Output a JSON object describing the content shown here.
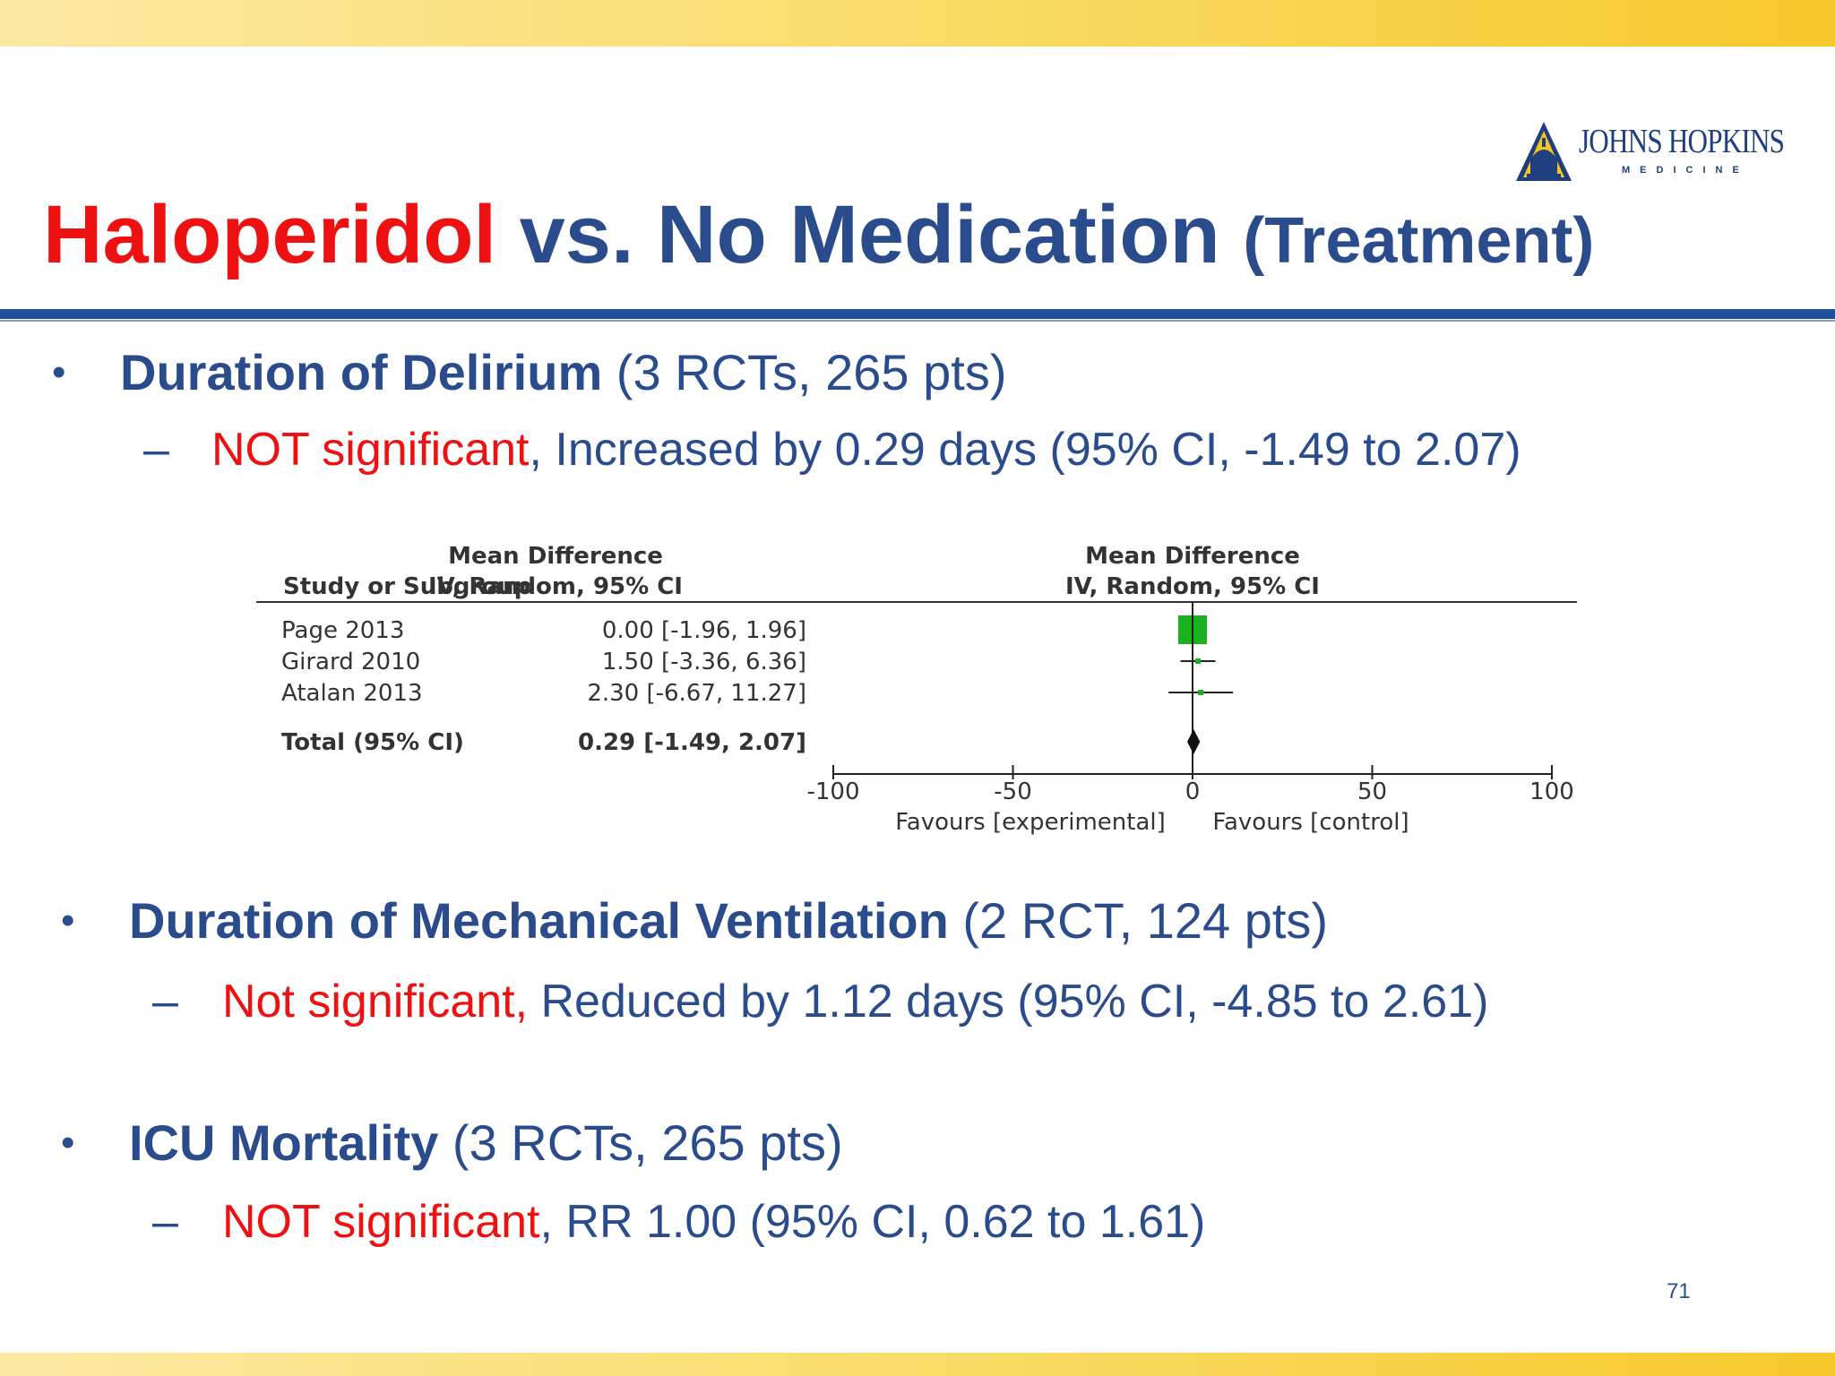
{
  "colors": {
    "title_blue": "#2b4c8c",
    "accent_red": "#ee1111",
    "rule_blue": "#1f4e9a",
    "band_gold": "#f9dd6e",
    "marker_green": "#19b21f"
  },
  "logo": {
    "name": "JOHNS HOPKINS",
    "sub": "MEDICINE",
    "icon": "dome-shield-icon"
  },
  "title": {
    "part1": "Haloperidol",
    "part2": " vs. No Medication ",
    "part3": "(Treatment)"
  },
  "bullets": [
    {
      "heading": "Duration of Delirium",
      "detail": " (3 RCTs, 265 pts)",
      "sub_sig": "NOT significant",
      "sub_rest": ", Increased by 0.29 days (95% CI, -1.49 to 2.07)"
    },
    {
      "heading": "Duration of Mechanical Ventilation",
      "detail": " (2 RCT, 124 pts)",
      "sub_sig": "Not significant,",
      "sub_rest": " Reduced by 1.12 days (95% CI, -4.85 to 2.61)"
    },
    {
      "heading": "ICU Mortality",
      "detail": " (3 RCTs, 265 pts)",
      "sub_sig": "NOT significant",
      "sub_rest": ", RR 1.00 (95% CI, 0.62 to 1.61)"
    }
  ],
  "bullet_char": "•",
  "dash_char": "–",
  "forest": {
    "col_study": "Study or Subgroup",
    "col_md_line1": "Mean Difference",
    "col_md_line2": "IV, Random, 95% CI",
    "plot_header_line1": "Mean Difference",
    "plot_header_line2": "IV, Random, 95% CI",
    "total_label": "Total (95% CI)",
    "total_ci_text": "0.29 [-1.49, 2.07]",
    "favours_left": "Favours [experimental]",
    "favours_right": "Favours [control]"
  },
  "chart_data": {
    "type": "forest",
    "studies": [
      {
        "name": "Page 2013",
        "md": 0.0,
        "lo": -1.96,
        "hi": 1.96,
        "ci_text": "0.00 [-1.96, 1.96]"
      },
      {
        "name": "Girard 2010",
        "md": 1.5,
        "lo": -3.36,
        "hi": 6.36,
        "ci_text": "1.50 [-3.36, 6.36]"
      },
      {
        "name": "Atalan 2013",
        "md": 2.3,
        "lo": -6.67,
        "hi": 11.27,
        "ci_text": "2.30 [-6.67, 11.27]"
      }
    ],
    "total": {
      "md": 0.29,
      "lo": -1.49,
      "hi": 2.07
    },
    "xlim": [
      -100,
      100
    ],
    "ticks": [
      -100,
      -50,
      0,
      50,
      100
    ],
    "tick_labels": [
      "-100",
      "-50",
      "0",
      "50",
      "100"
    ]
  },
  "page_number": "71"
}
